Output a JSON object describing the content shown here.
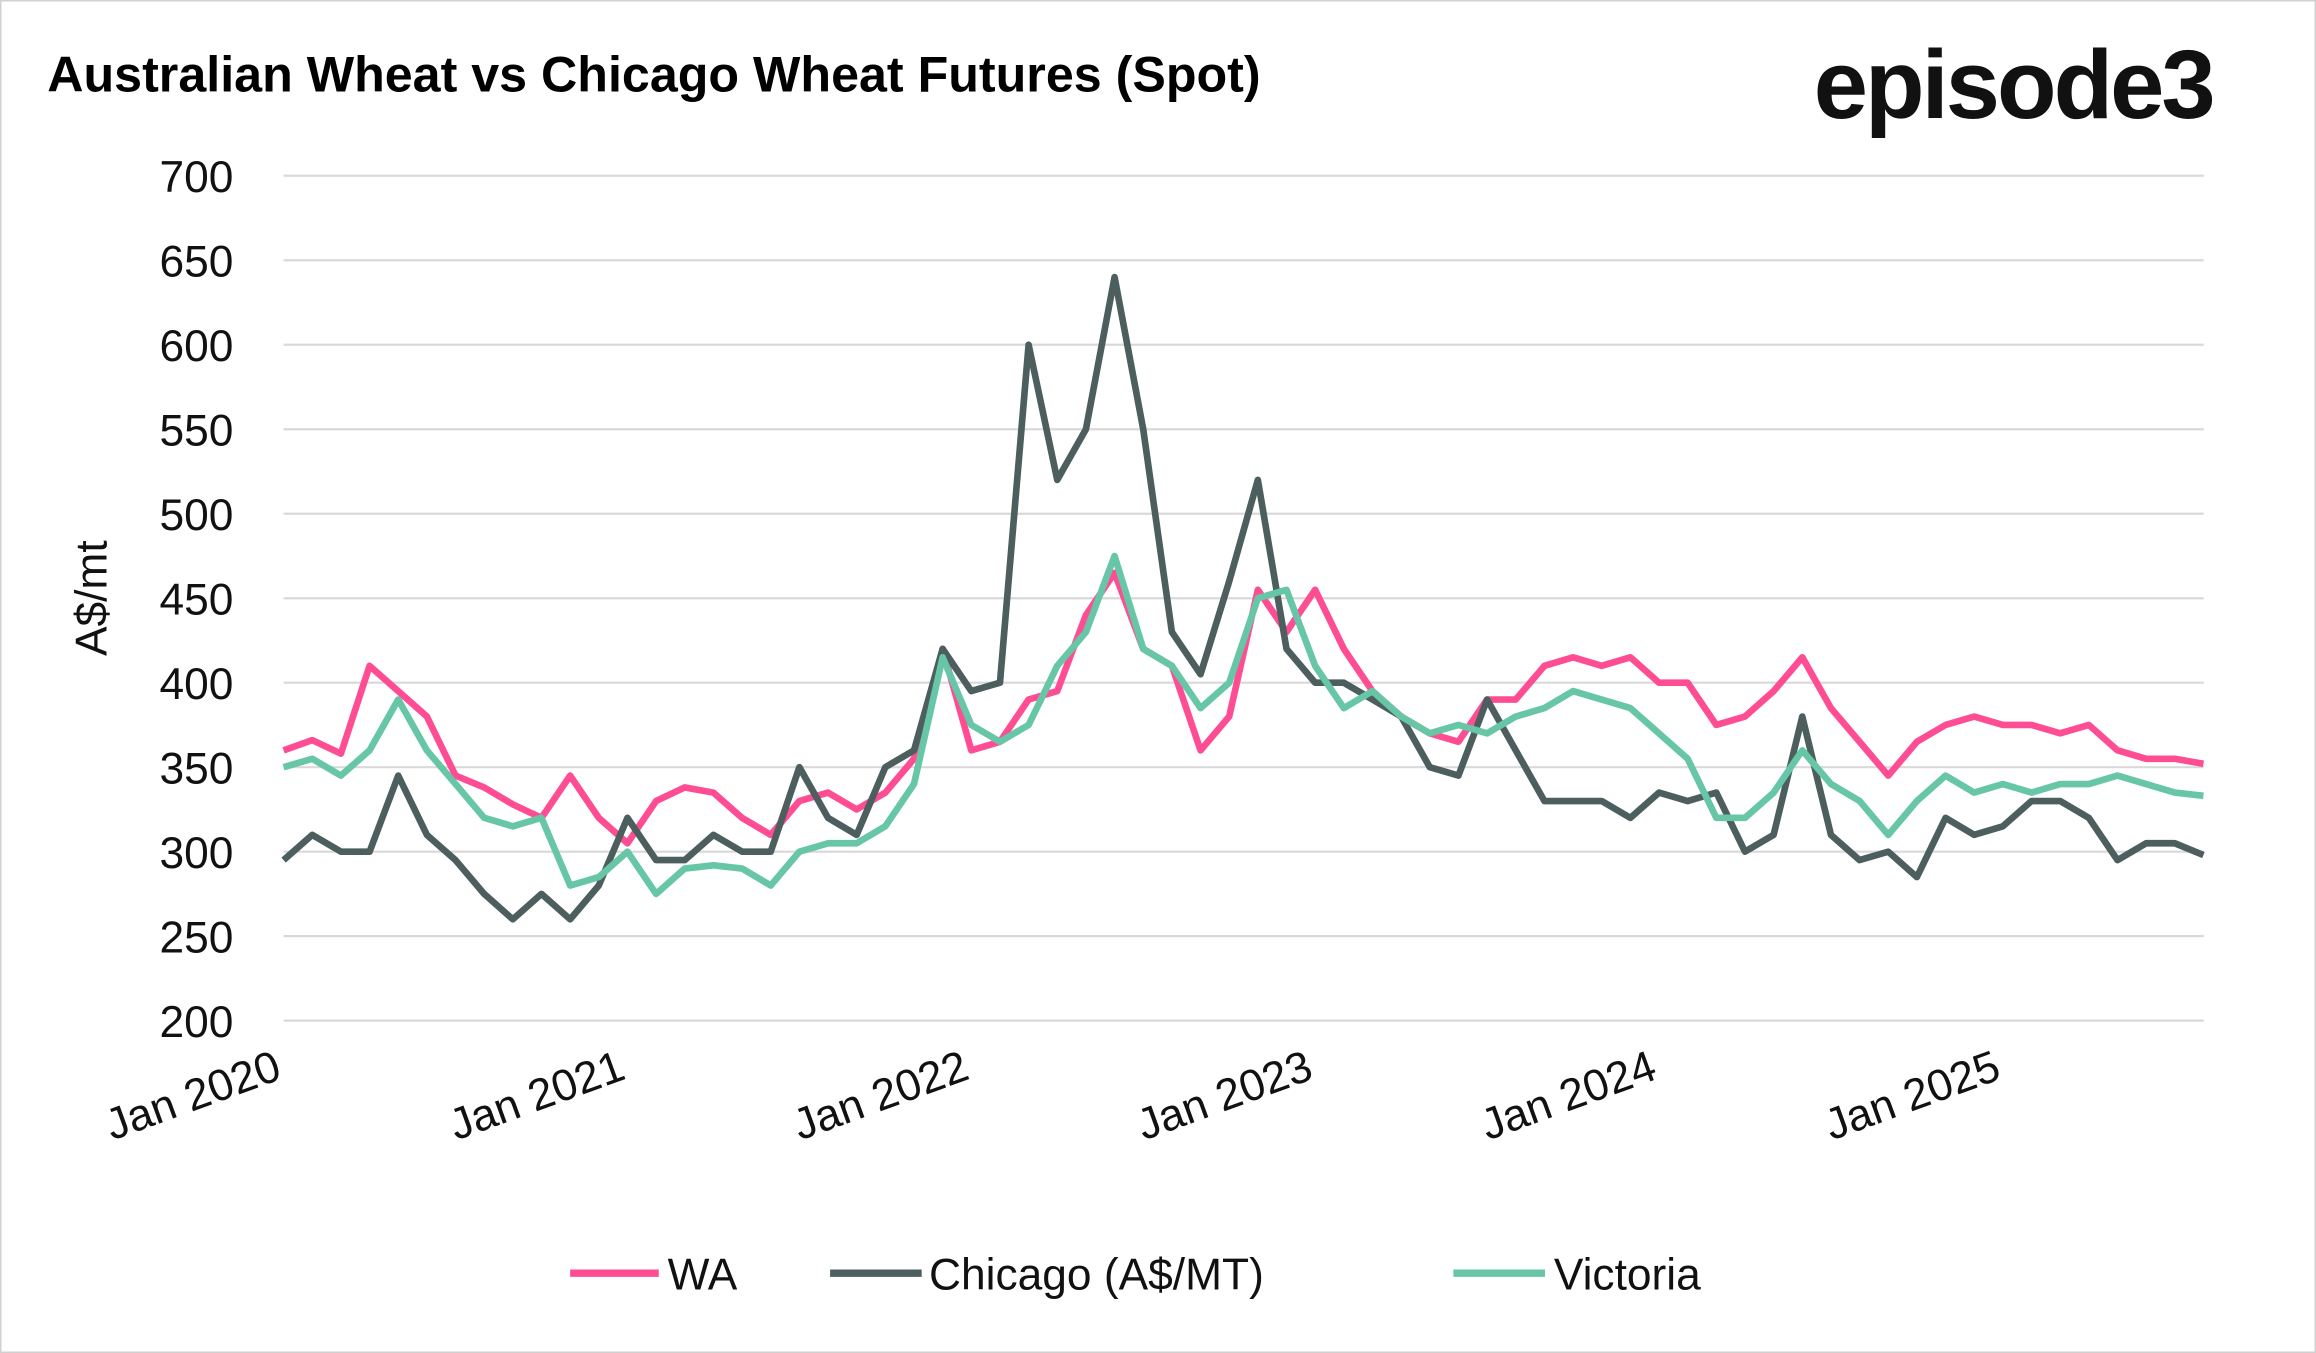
{
  "chart_data": {
    "type": "line",
    "title": "Australian Wheat vs Chicago Wheat Futures (Spot)",
    "brand": "episode3",
    "ylabel": "A$/mt",
    "xlabel": "",
    "ylim": [
      200,
      700
    ],
    "yticks": [
      200,
      250,
      300,
      350,
      400,
      450,
      500,
      550,
      600,
      650,
      700
    ],
    "xtick_labels": [
      "Jan 2020",
      "Jan 2021",
      "Jan 2022",
      "Jan 2023",
      "Jan 2024",
      "Jan 2025"
    ],
    "xtick_dates": [
      "2020-01",
      "2021-01",
      "2022-01",
      "2023-01",
      "2024-01",
      "2025-01"
    ],
    "grid": true,
    "legend_position": "bottom",
    "x": [
      "2020-01",
      "2020-02",
      "2020-03",
      "2020-04",
      "2020-05",
      "2020-06",
      "2020-07",
      "2020-08",
      "2020-09",
      "2020-10",
      "2020-11",
      "2020-12",
      "2021-01",
      "2021-02",
      "2021-03",
      "2021-04",
      "2021-05",
      "2021-06",
      "2021-07",
      "2021-08",
      "2021-09",
      "2021-10",
      "2021-11",
      "2021-12",
      "2022-01",
      "2022-02",
      "2022-03",
      "2022-04",
      "2022-05",
      "2022-06",
      "2022-07",
      "2022-08",
      "2022-09",
      "2022-10",
      "2022-11",
      "2022-12",
      "2023-01",
      "2023-02",
      "2023-03",
      "2023-04",
      "2023-05",
      "2023-06",
      "2023-07",
      "2023-08",
      "2023-09",
      "2023-10",
      "2023-11",
      "2023-12",
      "2024-01",
      "2024-02",
      "2024-03",
      "2024-04",
      "2024-05",
      "2024-06",
      "2024-07",
      "2024-08",
      "2024-09",
      "2024-10",
      "2024-11",
      "2024-12",
      "2025-01",
      "2025-02",
      "2025-03",
      "2025-04",
      "2025-05",
      "2025-06",
      "2025-07",
      "2025-08"
    ],
    "series": [
      {
        "name": "WA",
        "color": "#FF4D94",
        "values": [
          360,
          366,
          358,
          410,
          395,
          380,
          345,
          338,
          328,
          320,
          345,
          320,
          305,
          330,
          338,
          335,
          320,
          310,
          330,
          335,
          325,
          335,
          355,
          420,
          360,
          365,
          390,
          395,
          440,
          465,
          420,
          410,
          360,
          380,
          455,
          430,
          455,
          420,
          395,
          380,
          370,
          365,
          390,
          390,
          410,
          415,
          410,
          415,
          400,
          400,
          375,
          380,
          395,
          415,
          385,
          365,
          345,
          365,
          375,
          380,
          375,
          375,
          370,
          375,
          360,
          355,
          355,
          352
        ]
      },
      {
        "name": "Chicago (A$/MT)",
        "color": "#4D5E5E",
        "values": [
          295,
          310,
          300,
          300,
          345,
          310,
          295,
          275,
          260,
          275,
          260,
          280,
          320,
          295,
          295,
          310,
          300,
          300,
          350,
          320,
          310,
          350,
          360,
          420,
          395,
          400,
          600,
          520,
          550,
          640,
          550,
          430,
          405,
          460,
          520,
          420,
          400,
          400,
          390,
          380,
          350,
          345,
          390,
          360,
          330,
          330,
          330,
          320,
          335,
          330,
          335,
          300,
          310,
          380,
          310,
          295,
          300,
          285,
          320,
          310,
          315,
          330,
          330,
          320,
          295,
          305,
          305,
          298
        ]
      },
      {
        "name": "Victoria",
        "color": "#66C6A6",
        "values": [
          350,
          355,
          345,
          360,
          390,
          360,
          340,
          320,
          315,
          320,
          280,
          285,
          300,
          275,
          290,
          292,
          290,
          280,
          300,
          305,
          305,
          315,
          340,
          415,
          375,
          365,
          375,
          410,
          430,
          475,
          420,
          410,
          385,
          400,
          450,
          455,
          410,
          385,
          395,
          380,
          370,
          375,
          370,
          380,
          385,
          395,
          390,
          385,
          370,
          355,
          320,
          320,
          335,
          360,
          340,
          330,
          310,
          330,
          345,
          335,
          340,
          335,
          340,
          340,
          345,
          340,
          335,
          333
        ]
      }
    ]
  }
}
